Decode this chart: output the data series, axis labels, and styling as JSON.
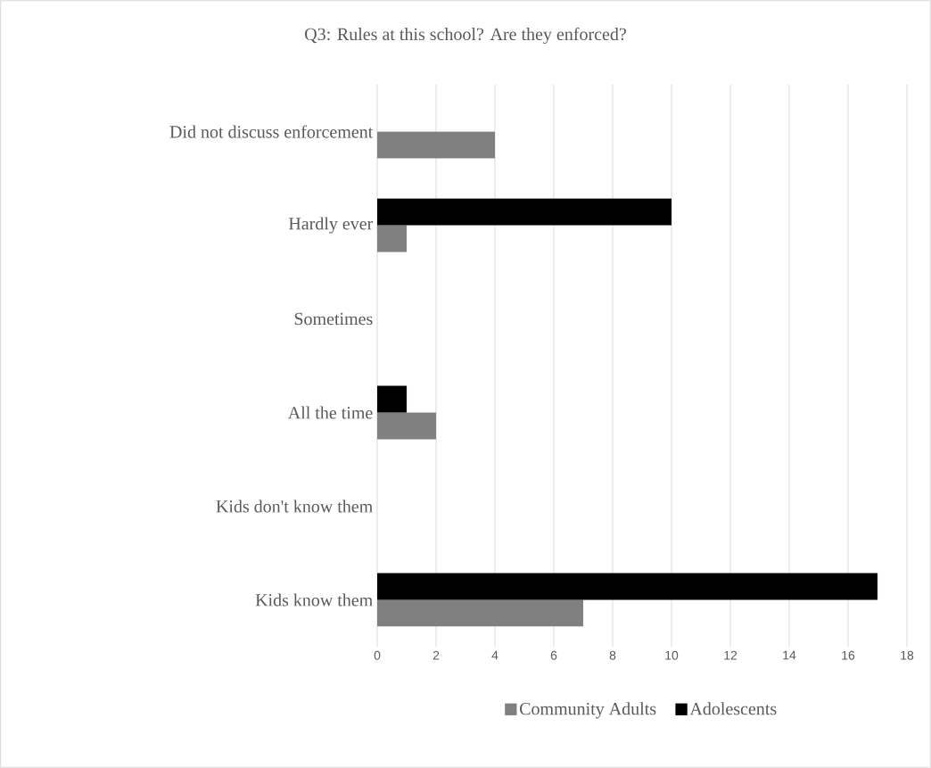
{
  "chart_data": {
    "type": "bar",
    "orientation": "horizontal",
    "title": "Q3: Rules at this school? Are they enforced?",
    "categories": [
      "Did not discuss enforcement",
      "Hardly ever",
      "Sometimes",
      "All the time",
      "Kids don't know them",
      "Kids know them"
    ],
    "series": [
      {
        "name": "Community Adults",
        "color": "#808080",
        "values": [
          4,
          1,
          null,
          2,
          null,
          7
        ]
      },
      {
        "name": "Adolescents",
        "color": "#000000",
        "values": [
          null,
          10,
          null,
          1,
          null,
          17
        ]
      }
    ],
    "xlim": [
      0,
      18
    ],
    "xticks": [
      0,
      2,
      4,
      6,
      8,
      10,
      12,
      14,
      16,
      18
    ],
    "grid": "x",
    "legend": "bottom"
  }
}
